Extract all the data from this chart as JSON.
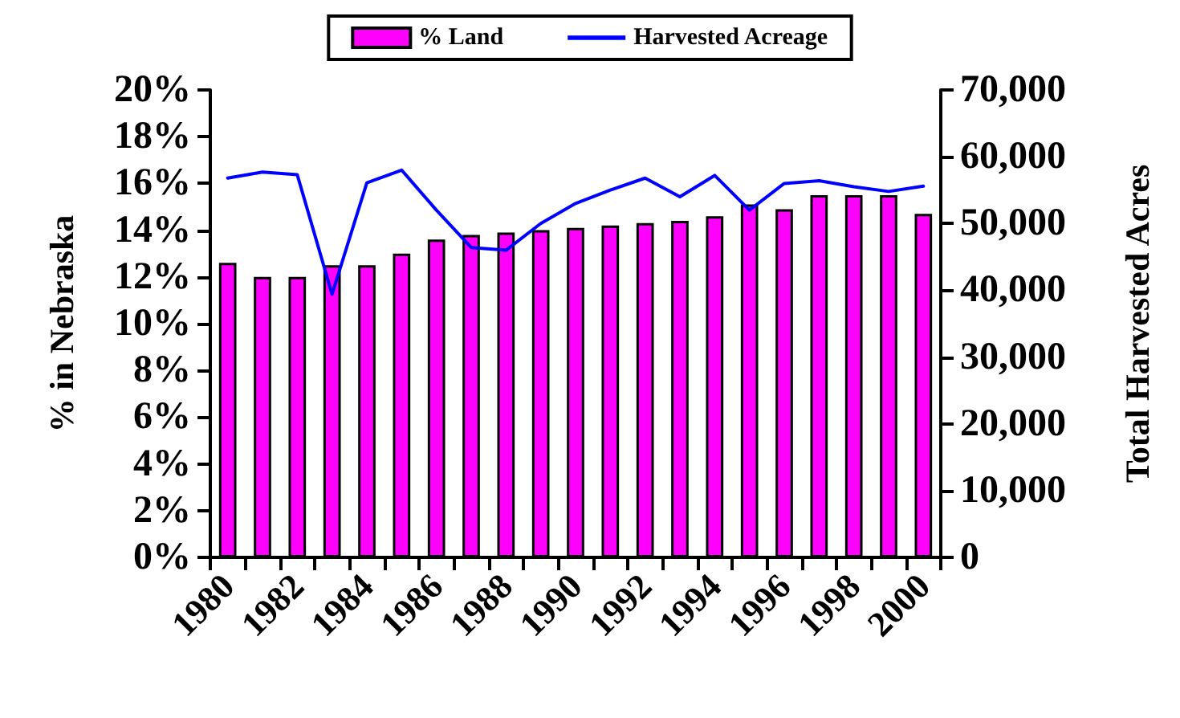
{
  "chart_data": {
    "type": "bar",
    "ylabel": "% in Nebraska",
    "y2label": "Total Harvested Acres",
    "categories": [
      "1980",
      null,
      "1982",
      null,
      "1984",
      null,
      "1986",
      null,
      "1988",
      null,
      "1990",
      null,
      "1992",
      null,
      "1994",
      null,
      "1996",
      null,
      "1998",
      null,
      "2000"
    ],
    "series": [
      {
        "name": "% Land",
        "color": "#ff00ff",
        "values": [
          12.6,
          12.0,
          12.0,
          12.5,
          12.5,
          13.0,
          13.6,
          13.8,
          13.9,
          14.0,
          14.1,
          14.2,
          14.3,
          14.4,
          14.6,
          15.1,
          14.9,
          15.5,
          15.5,
          15.5,
          14.7
        ]
      },
      {
        "name": "Harvested Acreage",
        "type": "line",
        "axis": "y2",
        "color": "#0000ff",
        "values": [
          56800,
          57700,
          57300,
          39400,
          56100,
          58000,
          52000,
          46400,
          46000,
          50000,
          53000,
          55000,
          56800,
          54000,
          57200,
          52000,
          56000,
          56400,
          55500,
          54800,
          55600
        ]
      }
    ],
    "ylim": [
      0,
      20
    ],
    "yticks": [
      {
        "value": 0,
        "label": "0%"
      },
      {
        "value": 2,
        "label": "2%"
      },
      {
        "value": 4,
        "label": "4%"
      },
      {
        "value": 6,
        "label": "6%"
      },
      {
        "value": 8,
        "label": "8%"
      },
      {
        "value": 10,
        "label": "10%"
      },
      {
        "value": 12,
        "label": "12%"
      },
      {
        "value": 14,
        "label": "14%"
      },
      {
        "value": 16,
        "label": "16%"
      },
      {
        "value": 18,
        "label": "18%"
      },
      {
        "value": 20,
        "label": "20%"
      }
    ],
    "y2lim": [
      0,
      70000
    ],
    "y2ticks": [
      0,
      {
        "value": 10000,
        "label": "10,000"
      },
      {
        "value": 20000,
        "label": "20,000"
      },
      {
        "value": 30000,
        "label": "30,000"
      },
      {
        "value": 40000,
        "label": "40,000"
      },
      {
        "value": 50000,
        "label": "50,000"
      },
      {
        "value": 60000,
        "label": "60,000"
      },
      {
        "value": 70000,
        "label": "70,000"
      }
    ],
    "grid": false,
    "legend": "top",
    "marker": "none"
  }
}
